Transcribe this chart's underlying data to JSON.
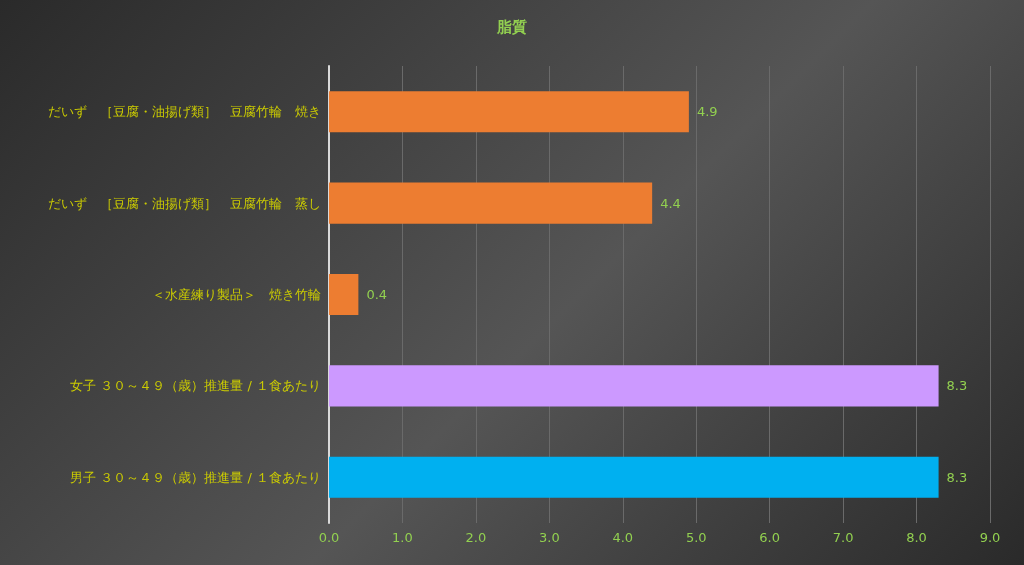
{
  "chart_data": {
    "type": "bar",
    "orientation": "horizontal",
    "title": "脂質",
    "categories": [
      "だいず　［豆腐・油揚げ類］　豆腐竹輪　焼き",
      "だいず　［豆腐・油揚げ類］　豆腐竹輪　蒸し",
      "＜水産練り製品＞　焼き竹輪",
      "女子 ３０～４９（歳）推進量 / １食あたり",
      "男子 ３０～４９（歳）推進量 / １食あたり"
    ],
    "values": [
      4.9,
      4.4,
      0.4,
      8.3,
      8.3
    ],
    "colors": [
      "#ed7d31",
      "#ed7d31",
      "#ed7d31",
      "#cc99ff",
      "#00b0f0"
    ],
    "xlim": [
      0,
      9
    ],
    "xticks": [
      {
        "value": 0,
        "label": "0.0"
      },
      {
        "value": 1,
        "label": "1.0"
      },
      {
        "value": 2,
        "label": "2.0"
      },
      {
        "value": 3,
        "label": "3.0"
      },
      {
        "value": 4,
        "label": "4.0"
      },
      {
        "value": 5,
        "label": "5.0"
      },
      {
        "value": 6,
        "label": "6.0"
      },
      {
        "value": 7,
        "label": "7.0"
      },
      {
        "value": 8,
        "label": "8.0"
      },
      {
        "value": 9,
        "label": "9.0"
      }
    ],
    "grid": "x",
    "data_labels": true
  }
}
